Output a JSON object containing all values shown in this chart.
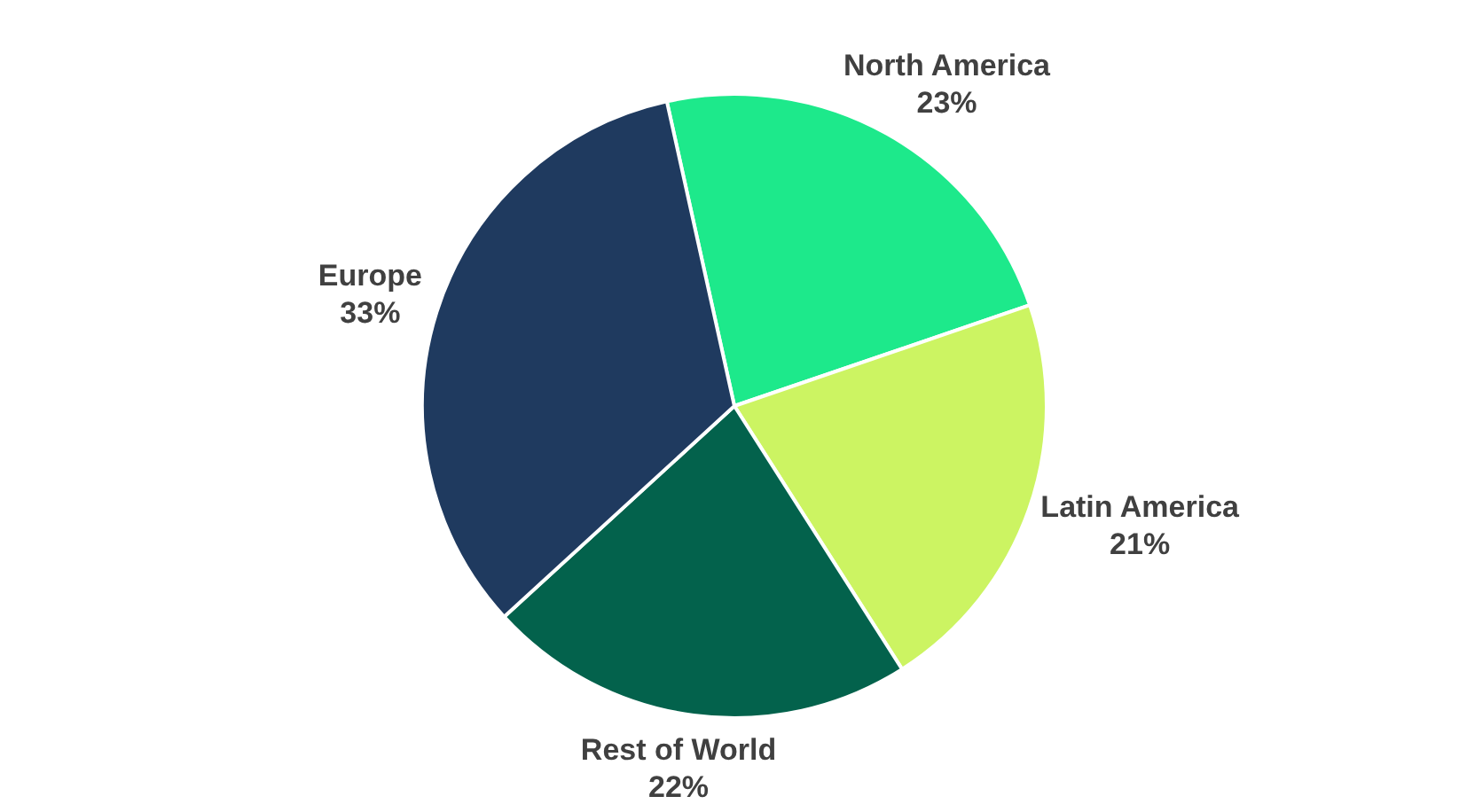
{
  "chart_data": {
    "type": "pie",
    "categories": [
      "North America",
      "Latin America",
      "Rest of World",
      "Europe"
    ],
    "values": [
      23,
      21,
      22,
      33
    ],
    "colors": [
      "#1de98b",
      "#ccf462",
      "#03624c",
      "#1f3a5f"
    ],
    "value_labels": [
      "23%",
      "21%",
      "22%",
      "33%"
    ],
    "legend": false
  }
}
